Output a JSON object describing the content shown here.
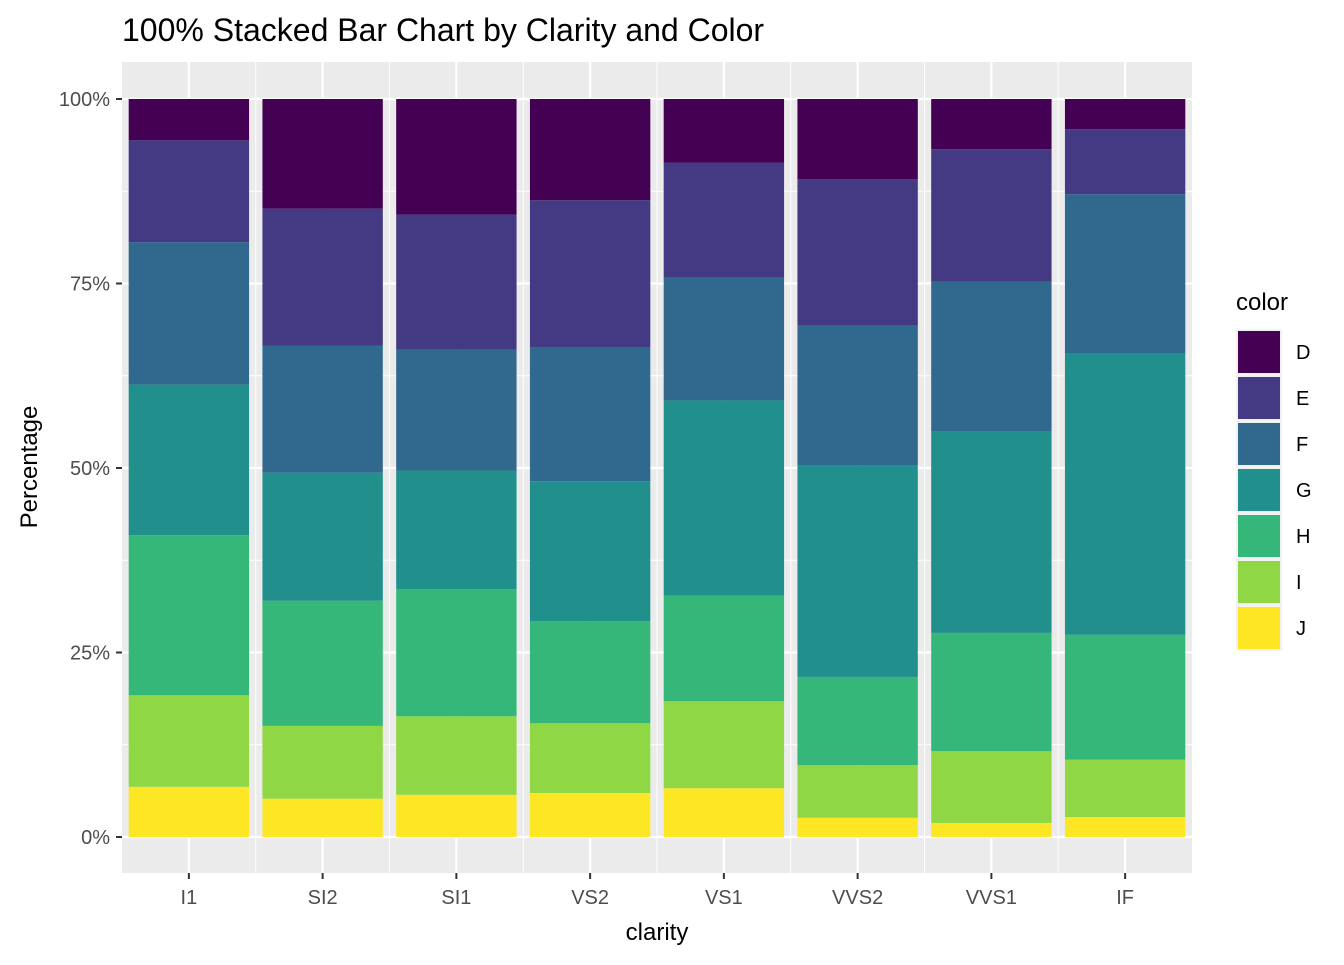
{
  "chart_data": {
    "type": "bar",
    "stacked": "percent",
    "title": "100% Stacked Bar Chart by Clarity and Color",
    "xlabel": "clarity",
    "ylabel": "Percentage",
    "categories": [
      "I1",
      "SI2",
      "SI1",
      "VS2",
      "VS1",
      "VVS2",
      "VVS1",
      "IF"
    ],
    "ylim": [
      0,
      1
    ],
    "y_ticks": [
      0,
      0.25,
      0.5,
      0.75,
      1
    ],
    "y_tick_labels": [
      "0%",
      "25%",
      "50%",
      "75%",
      "100%"
    ],
    "grid": true,
    "legend": {
      "title": "color",
      "position": "right"
    },
    "series": [
      {
        "name": "D",
        "color": "#440154",
        "values": [
          0.056,
          0.149,
          0.159,
          0.138,
          0.086,
          0.108,
          0.068,
          0.041
        ]
      },
      {
        "name": "E",
        "color": "#443A83",
        "values": [
          0.138,
          0.186,
          0.186,
          0.201,
          0.156,
          0.197,
          0.179,
          0.088
        ]
      },
      {
        "name": "F",
        "color": "#31688E",
        "values": [
          0.193,
          0.173,
          0.166,
          0.182,
          0.166,
          0.189,
          0.202,
          0.216
        ]
      },
      {
        "name": "G",
        "color": "#21908C",
        "values": [
          0.204,
          0.174,
          0.163,
          0.191,
          0.264,
          0.286,
          0.273,
          0.381
        ]
      },
      {
        "name": "H",
        "color": "#35B779",
        "values": [
          0.217,
          0.17,
          0.175,
          0.139,
          0.143,
          0.119,
          0.16,
          0.169
        ]
      },
      {
        "name": "I",
        "color": "#8FD744",
        "values": [
          0.124,
          0.099,
          0.108,
          0.095,
          0.118,
          0.071,
          0.097,
          0.078
        ]
      },
      {
        "name": "J",
        "color": "#FDE725",
        "values": [
          0.068,
          0.052,
          0.058,
          0.06,
          0.066,
          0.026,
          0.019,
          0.027
        ]
      }
    ]
  }
}
